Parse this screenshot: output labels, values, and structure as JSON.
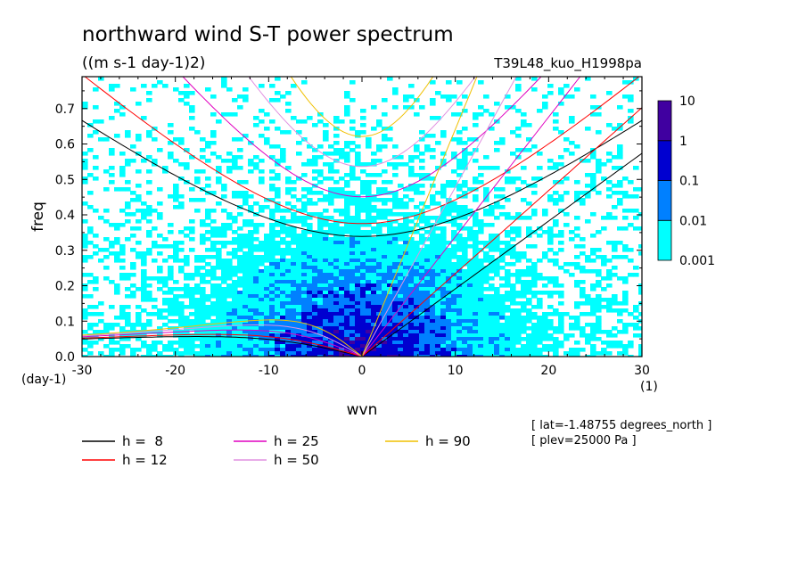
{
  "title": "northward wind S-T power spectrum",
  "units_label": "((m s-1 day-1)2)",
  "run_label": "T39L48_kuo_H1998pa",
  "info": [
    "[ lat=-1.48755 degrees_north ]",
    "[ plev=25000 Pa ]"
  ],
  "chart_data": {
    "type": "heatmap",
    "xlabel": "wvn",
    "ylabel": "freq",
    "x_unit_label": "(1)",
    "y_unit_label": "(day-1)",
    "xlim": [
      -30,
      30
    ],
    "ylim": [
      0,
      0.79
    ],
    "x_ticks": [
      -30,
      -20,
      -10,
      0,
      10,
      20,
      30
    ],
    "x_tick_labels": [
      "-30",
      "-20",
      "-10",
      "0",
      "10",
      "20",
      "30"
    ],
    "y_ticks": [
      0,
      0.1,
      0.2,
      0.3,
      0.4,
      0.5,
      0.6,
      0.7
    ],
    "y_tick_labels": [
      "0.0",
      "0.1",
      "0.2",
      "0.3",
      "0.4",
      "0.5",
      "0.6",
      "0.7"
    ],
    "colorbar": {
      "levels": [
        "0.001",
        "0.01",
        "0.1",
        "1",
        "10"
      ],
      "colors": [
        "#00ffff",
        "#0080ff",
        "#0000d0",
        "#4000a0"
      ]
    },
    "dispersion_curves": [
      {
        "name": "h =  8",
        "value": 8,
        "color": "#000000"
      },
      {
        "name": "h = 12",
        "value": 12,
        "color": "#ff0000"
      },
      {
        "name": "h = 25",
        "value": 25,
        "color": "#e000c0"
      },
      {
        "name": "h = 50",
        "value": 50,
        "color": "#e090e0"
      },
      {
        "name": "h = 90",
        "value": 90,
        "color": "#f0c000"
      }
    ]
  }
}
